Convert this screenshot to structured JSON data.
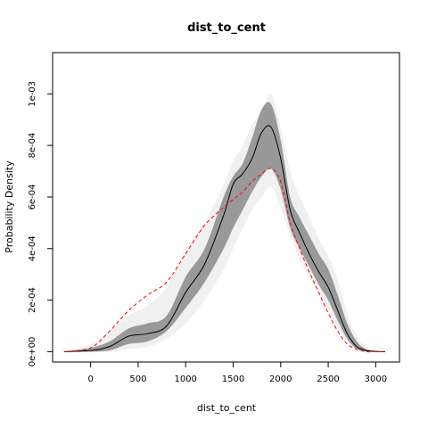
{
  "chart_data": {
    "type": "area",
    "title": "dist_to_cent",
    "xlabel": "dist_to_cent",
    "ylabel": "Probability Density",
    "xlim": [
      -400,
      3250
    ],
    "ylim": [
      -4e-05,
      0.00116
    ],
    "x_ticks": [
      0,
      500,
      1000,
      1500,
      2000,
      2500,
      3000
    ],
    "x_tick_labels": [
      "0",
      "500",
      "1000",
      "1500",
      "2000",
      "2500",
      "3000"
    ],
    "y_ticks": [
      0,
      0.0002,
      0.0004,
      0.0006,
      0.0008,
      0.001
    ],
    "y_tick_labels": [
      "0e+00",
      "2e-04",
      "4e-04",
      "6e-04",
      "8e-04",
      "1e-03"
    ],
    "grid": false,
    "x": [
      -280,
      0,
      200,
      400,
      600,
      800,
      1000,
      1200,
      1400,
      1500,
      1600,
      1700,
      1800,
      1900,
      2000,
      2100,
      2200,
      2300,
      2400,
      2500,
      2600,
      2700,
      2800,
      2900,
      3000,
      3100
    ],
    "series": [
      {
        "role": "outer_band_upper",
        "color": "#f0f0f0",
        "values": [
          0,
          3e-05,
          8e-05,
          0.00014,
          0.00018,
          0.00025,
          0.0004,
          0.0005,
          0.00065,
          0.00074,
          0.0008,
          0.00088,
          0.00093,
          0.001,
          0.00087,
          0.0007,
          0.0006,
          0.00052,
          0.00044,
          0.00037,
          0.00028,
          0.00015,
          6e-05,
          2e-05,
          5e-06,
          0
        ]
      },
      {
        "role": "outer_band_lower",
        "color": "#f0f0f0",
        "values": [
          0,
          0,
          0,
          1e-05,
          2e-05,
          5e-05,
          0.00011,
          0.0002,
          0.00032,
          0.0004,
          0.00048,
          0.00055,
          0.0006,
          0.00064,
          0.00056,
          0.00045,
          0.00036,
          0.00029,
          0.00022,
          0.00016,
          9e-05,
          4e-05,
          1e-05,
          0,
          0,
          0
        ]
      },
      {
        "role": "inner_band_upper",
        "color": "#999999",
        "values": [
          0,
          1.5e-05,
          4e-05,
          9e-05,
          0.00011,
          0.00014,
          0.00029,
          0.0004,
          0.0006,
          0.00068,
          0.00073,
          0.00083,
          0.00094,
          0.00096,
          0.00082,
          0.0006,
          0.00052,
          0.00045,
          0.00038,
          0.00032,
          0.00022,
          0.00011,
          4e-05,
          1e-05,
          3e-06,
          0
        ]
      },
      {
        "role": "inner_band_lower",
        "color": "#999999",
        "values": [
          0,
          0,
          5e-06,
          3e-05,
          4e-05,
          8e-05,
          0.00017,
          0.00027,
          0.0004,
          0.00048,
          0.00055,
          0.00062,
          0.00068,
          0.00071,
          0.00063,
          0.00048,
          0.0004,
          0.00033,
          0.00026,
          0.0002,
          0.00012,
          5e-05,
          1e-05,
          0,
          0,
          0
        ]
      },
      {
        "role": "observed_density",
        "color": "#000000",
        "style": "solid",
        "values": [
          0,
          5e-06,
          2e-05,
          6e-05,
          7e-05,
          0.0001,
          0.00023,
          0.00034,
          0.00053,
          0.00065,
          0.00069,
          0.00075,
          0.00085,
          0.00087,
          0.00075,
          0.00055,
          0.00046,
          0.00038,
          0.00031,
          0.00025,
          0.00016,
          7e-05,
          2e-05,
          5e-06,
          1e-06,
          0
        ]
      },
      {
        "role": "reference_density",
        "color": "#ff0000",
        "style": "dashed",
        "values": [
          0,
          1.5e-05,
          8e-05,
          0.00016,
          0.00022,
          0.00027,
          0.00038,
          0.00049,
          0.00056,
          0.00059,
          0.00062,
          0.00066,
          0.00069,
          0.00071,
          0.00066,
          0.0005,
          0.0004,
          0.00031,
          0.00023,
          0.00015,
          8e-05,
          3e-05,
          1e-05,
          0,
          0,
          0
        ]
      }
    ]
  }
}
